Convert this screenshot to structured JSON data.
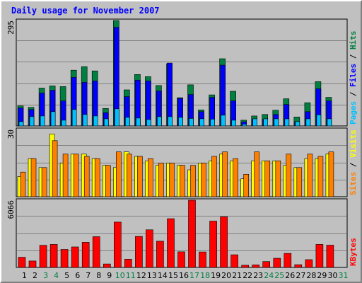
{
  "chart_data": {
    "type": "bar",
    "title": "Daily usage for November 2007",
    "colors": {
      "background": "#c0c0c0",
      "panel_background": "#c0c0c0",
      "grid": "#808080",
      "title": "#0000ff",
      "hits": "#008040",
      "files": "#0000ff",
      "pages": "#00c0ff",
      "visits": "#ffff00",
      "sites": "#ff8000",
      "kbytes": "#ff0000",
      "weekend_label": "#008040",
      "weekday_label": "#000000"
    },
    "days": [
      "1",
      "2",
      "3",
      "4",
      "5",
      "6",
      "7",
      "8",
      "9",
      "10",
      "11",
      "12",
      "13",
      "14",
      "15",
      "16",
      "17",
      "18",
      "19",
      "20",
      "21",
      "22",
      "23",
      "24",
      "25",
      "26",
      "27",
      "28",
      "29",
      "30",
      "31"
    ],
    "weekend_days": [
      "3",
      "4",
      "10",
      "11",
      "17",
      "18",
      "24",
      "25",
      "31"
    ],
    "panels": [
      {
        "name": "hits_files_pages",
        "max_label": "295",
        "ymax": 295,
        "legend": [
          {
            "text": "Pages",
            "color": "#00c0ff"
          },
          {
            "text": " / ",
            "color": "#000000"
          },
          {
            "text": "Files",
            "color": "#0000ff"
          },
          {
            "text": " / ",
            "color": "#000000"
          },
          {
            "text": "Hits",
            "color": "#008040"
          }
        ],
        "series": [
          {
            "name": "Hits",
            "values": [
              56,
              52,
              106,
              112,
              110,
              156,
              166,
              154,
              49,
              295,
              101,
              144,
              138,
              113,
              174,
              79,
              115,
              45,
              87,
              188,
              97,
              16,
              28,
              32,
              44,
              76,
              25,
              65,
              124,
              80,
              0
            ]
          },
          {
            "name": "Files",
            "values": [
              50,
              46,
              92,
              100,
              70,
              136,
              122,
              126,
              37,
              276,
              82,
              128,
              126,
              98,
              176,
              77,
              88,
              40,
              80,
              170,
              70,
              11,
              19,
              19,
              32,
              60,
              12,
              40,
              104,
              70,
              0
            ]
          },
          {
            "name": "Pages",
            "values": [
              12,
              26,
              28,
              40,
              16,
              46,
              32,
              28,
              20,
              48,
              24,
              22,
              18,
              26,
              26,
              24,
              21,
              20,
              19,
              30,
              16,
              5,
              20,
              20,
              20,
              20,
              12,
              20,
              31,
              20,
              0
            ]
          }
        ]
      },
      {
        "name": "visits_sites",
        "max_label": "30",
        "ymax": 30,
        "legend": [
          {
            "text": "Sites",
            "color": "#ff8000"
          },
          {
            "text": " / ",
            "color": "#000000"
          },
          {
            "text": "Visits",
            "color": "#ffff00"
          }
        ],
        "series": [
          {
            "name": "Visits",
            "values": [
              9,
              17,
              13,
              28,
              15,
              19,
              19,
              17,
              14,
              13,
              20,
              18,
              16,
              14,
              15,
              14,
              12,
              15,
              16,
              19,
              16,
              8,
              16,
              16,
              16,
              14,
              13,
              17,
              17,
              19,
              0
            ]
          },
          {
            "name": "Sites",
            "values": [
              11,
              17,
              13,
              25,
              19,
              19,
              18,
              17,
              14,
              20,
              19,
              18,
              17,
              15,
              15,
              14,
              14,
              15,
              18,
              20,
              17,
              10,
              20,
              16,
              16,
              19,
              13,
              19,
              18,
              20,
              0
            ]
          }
        ]
      },
      {
        "name": "kbytes",
        "max_label": "6066",
        "ymax": 6066,
        "legend": [
          {
            "text": "KBytes",
            "color": "#ff0000"
          }
        ],
        "series": [
          {
            "name": "KBytes",
            "values": [
              920,
              580,
              2000,
              2080,
              1630,
              1850,
              2270,
              2780,
              310,
              4090,
              740,
              2800,
              3400,
              2370,
              4400,
              1410,
              6066,
              1400,
              4180,
              4570,
              1140,
              200,
              230,
              530,
              830,
              1270,
              250,
              700,
              2080,
              2010,
              0
            ]
          }
        ]
      }
    ]
  }
}
